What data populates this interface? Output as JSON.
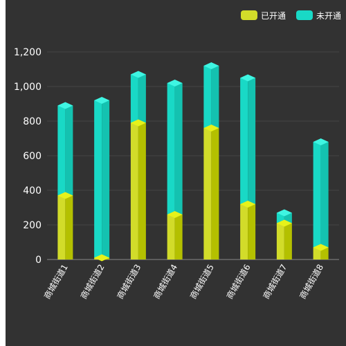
{
  "chart_data": {
    "type": "bar",
    "stacked": true,
    "style": "3d-cylinder-like columns",
    "categories": [
      "商城街道1",
      "商城街道2",
      "商城街道3",
      "商城街道4",
      "商城街道5",
      "商城街道6",
      "商城街道7",
      "商城街道8"
    ],
    "series": [
      {
        "name": "已开通",
        "values": [
          370,
          10,
          790,
          260,
          760,
          320,
          210,
          70
        ]
      },
      {
        "name": "未开通",
        "values": [
          520,
          910,
          280,
          760,
          360,
          730,
          60,
          610
        ]
      }
    ],
    "yticks": [
      "0",
      "200",
      "400",
      "600",
      "800",
      "1,000",
      "1,200"
    ],
    "ylim": [
      0,
      1200
    ],
    "grid": true,
    "legend_position": "top-right",
    "colors": {
      "background": "#323232",
      "series0": "#c8d400",
      "series0_top": "#e6f21a",
      "series1": "#19d9c6",
      "series1_top": "#3ff5e2",
      "grid": "#444444",
      "text": "#ffffff"
    }
  }
}
